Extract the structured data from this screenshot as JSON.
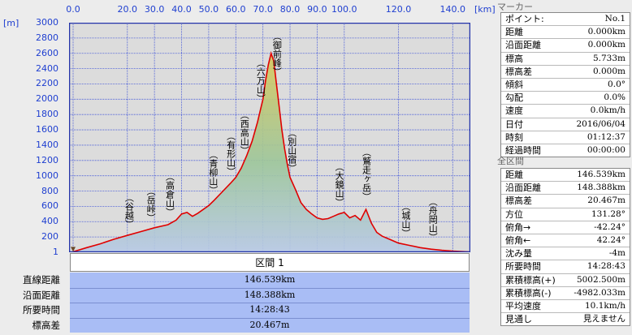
{
  "chart_data": {
    "type": "area",
    "x_unit": "[km]",
    "y_unit": "[m]",
    "xlim": [
      -1.5,
      146.5
    ],
    "ylim": [
      0,
      3000
    ],
    "x_ticks": [
      0,
      20,
      30,
      40,
      50,
      60,
      70,
      80,
      90,
      100,
      120,
      140
    ],
    "x_tick_labels": [
      "0.0",
      "20.0",
      "30.0",
      "40.0",
      "50.0",
      "60.0",
      "70.0",
      "80.0",
      "90.0",
      "100.0",
      "120.0",
      "140.0"
    ],
    "y_ticks": [
      1,
      200,
      400,
      600,
      800,
      1000,
      1200,
      1400,
      1600,
      1800,
      2000,
      2200,
      2400,
      2600,
      2800,
      3000
    ],
    "y_tick_labels": [
      "1",
      "200",
      "400",
      "600",
      "800",
      "1000",
      "1200",
      "1400",
      "1600",
      "1800",
      "2000",
      "2200",
      "2400",
      "2600",
      "2800",
      "3000"
    ],
    "profile": {
      "x": [
        0,
        5,
        10,
        15,
        20,
        25,
        30,
        35,
        38,
        40,
        42,
        44,
        46,
        48,
        50,
        52,
        55,
        58,
        60,
        62,
        64,
        66,
        68,
        70,
        71,
        72,
        73,
        74,
        75,
        76,
        77,
        78,
        79,
        80,
        82,
        84,
        86,
        88,
        90,
        92,
        94,
        96,
        98,
        100,
        102,
        104,
        106,
        108,
        110,
        112,
        114,
        116,
        118,
        120,
        124,
        128,
        132,
        136,
        140,
        144,
        146
      ],
      "y": [
        6,
        60,
        110,
        170,
        220,
        270,
        320,
        360,
        420,
        500,
        520,
        470,
        510,
        560,
        610,
        680,
        790,
        900,
        980,
        1100,
        1260,
        1450,
        1700,
        2000,
        2250,
        2450,
        2600,
        2500,
        2200,
        1900,
        1600,
        1350,
        1150,
        980,
        820,
        650,
        560,
        500,
        450,
        430,
        440,
        470,
        500,
        520,
        450,
        480,
        420,
        560,
        380,
        260,
        210,
        180,
        150,
        120,
        90,
        60,
        40,
        25,
        15,
        8,
        5
      ]
    },
    "places": [
      {
        "name": "谷越",
        "x": 20.5
      },
      {
        "name": "岳峠",
        "x": 28.5
      },
      {
        "name": "高倉山",
        "x": 35.5
      },
      {
        "name": "青柳山",
        "x": 51.5
      },
      {
        "name": "有形山",
        "x": 58.0
      },
      {
        "name": "西高山",
        "x": 63.0
      },
      {
        "name": "六万山",
        "x": 69.0
      },
      {
        "name": "御前峰",
        "x": 75.0
      },
      {
        "name": "別山宿",
        "x": 80.5
      },
      {
        "name": "大鏡山",
        "x": 98.0
      },
      {
        "name": "鷲走ヶ岳",
        "x": 108.0
      },
      {
        "name": "城山",
        "x": 122.5
      },
      {
        "name": "舟岡山",
        "x": 132.5
      }
    ]
  },
  "segment": {
    "title": "区間 1",
    "rows": [
      {
        "label": "直線距離",
        "value": "146.539km"
      },
      {
        "label": "沿面距離",
        "value": "148.388km"
      },
      {
        "label": "所要時間",
        "value": "14:28:43"
      },
      {
        "label": "標高差",
        "value": "20.467m"
      }
    ]
  },
  "marker": {
    "title": "マーカー",
    "rows": [
      {
        "label": "ポイント:",
        "value": "No.1"
      },
      {
        "label": "距離",
        "value": "0.000km"
      },
      {
        "label": "沿面距離",
        "value": "0.000km"
      },
      {
        "label": "標高",
        "value": "5.733m"
      },
      {
        "label": "標高差",
        "value": "0.000m"
      },
      {
        "label": "傾斜",
        "value": "0.0°"
      },
      {
        "label": "勾配",
        "value": "0.0%"
      },
      {
        "label": "速度",
        "value": "0.0km/h"
      },
      {
        "label": "日付",
        "value": "2016/06/04"
      },
      {
        "label": "時刻",
        "value": "01:12:37"
      },
      {
        "label": "経過時間",
        "value": "00:00:00"
      }
    ]
  },
  "total": {
    "title": "全区間",
    "rows": [
      {
        "label": "距離",
        "value": "146.539km"
      },
      {
        "label": "沿面距離",
        "value": "148.388km"
      },
      {
        "label": "標高差",
        "value": "20.467m"
      },
      {
        "label": "方位",
        "value": "131.28°"
      },
      {
        "label": "俯角→",
        "value": "-42.24°"
      },
      {
        "label": "俯角←",
        "value": "42.24°"
      },
      {
        "label": "沈み量",
        "value": "-4m"
      },
      {
        "label": "所要時間",
        "value": "14:28:43"
      },
      {
        "label": "累積標高(+)",
        "value": "5002.500m"
      },
      {
        "label": "累積標高(-)",
        "value": "-4982.033m"
      },
      {
        "label": "平均速度",
        "value": "10.1km/h"
      },
      {
        "label": "見通し",
        "value": "見えません"
      }
    ]
  },
  "colors": {
    "grid_border": "#2233aa",
    "grid_line": "#3a4fd8",
    "plot_bg": "#dcdcdc",
    "profile_line": "#e00000",
    "fill_top": "#d8c85a",
    "fill_bottom": "#b7c9e6",
    "segment_bg": "#a9bdf5"
  }
}
